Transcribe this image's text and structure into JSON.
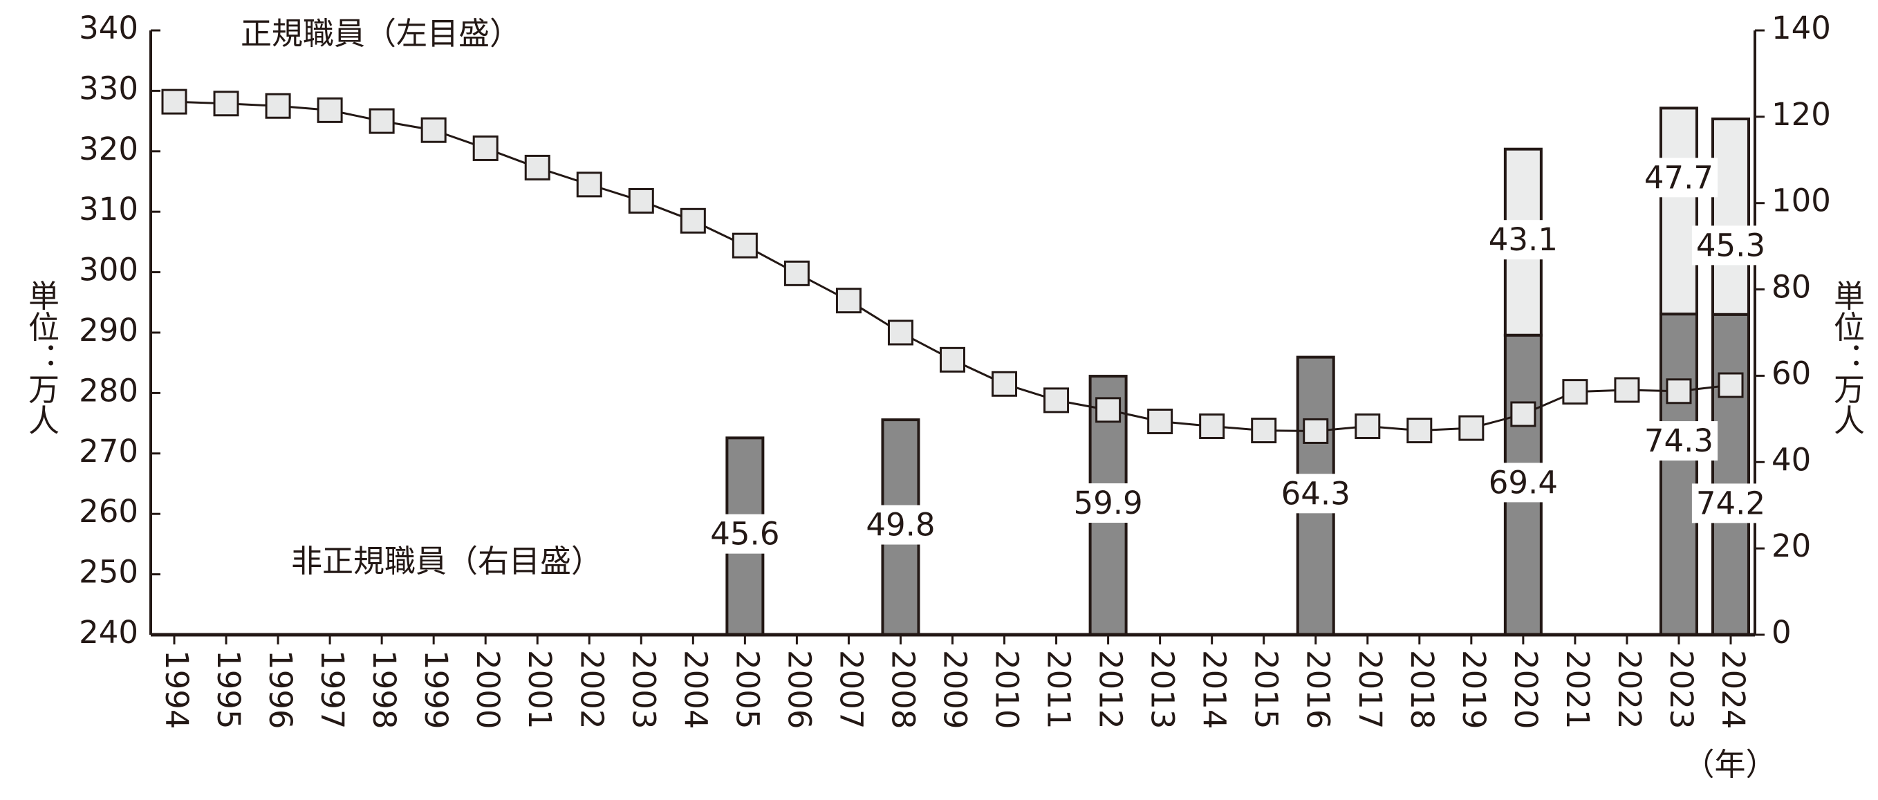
{
  "chart_data": {
    "type": "combo",
    "annotations": [
      "正規職員（左目盛）",
      "非正規職員（右目盛）"
    ],
    "ylabel": "単位：万人",
    "y2label": "単位：万人",
    "xlabel": "（年）",
    "categories": [
      "1994",
      "1995",
      "1996",
      "1997",
      "1998",
      "1999",
      "2000",
      "2001",
      "2002",
      "2003",
      "2004",
      "2005",
      "2006",
      "2007",
      "2008",
      "2009",
      "2010",
      "2011",
      "2012",
      "2013",
      "2014",
      "2015",
      "2016",
      "2017",
      "2018",
      "2019",
      "2020",
      "2021",
      "2022",
      "2023",
      "2024"
    ],
    "series": [
      {
        "type": "line",
        "axis": "y",
        "color": "#e8e9e9",
        "values": [
          328.2,
          327.9,
          327.5,
          326.8,
          325.0,
          323.5,
          320.5,
          317.3,
          314.5,
          311.8,
          308.5,
          304.4,
          299.8,
          295.3,
          290.0,
          285.5,
          281.5,
          278.8,
          277.2,
          275.3,
          274.5,
          273.8,
          273.7,
          274.5,
          273.8,
          274.2,
          276.5,
          280.2,
          280.5,
          280.3,
          281.3
        ]
      },
      {
        "type": "bar",
        "axis": "y2",
        "color": "#898989",
        "values": [
          null,
          null,
          null,
          null,
          null,
          null,
          null,
          null,
          null,
          null,
          null,
          45.6,
          null,
          null,
          49.8,
          null,
          null,
          null,
          59.9,
          null,
          null,
          null,
          64.3,
          null,
          null,
          null,
          69.4,
          null,
          null,
          74.3,
          74.2
        ]
      },
      {
        "type": "bar",
        "axis": "y2",
        "color": "#ebecec",
        "values": [
          null,
          null,
          null,
          null,
          null,
          null,
          null,
          null,
          null,
          null,
          null,
          null,
          null,
          null,
          null,
          null,
          null,
          null,
          null,
          null,
          null,
          null,
          null,
          null,
          null,
          null,
          43.1,
          null,
          null,
          47.7,
          45.3
        ]
      }
    ],
    "ylim": [
      240,
      340
    ],
    "yticks": [
      240,
      250,
      260,
      270,
      280,
      290,
      300,
      310,
      320,
      330,
      340
    ],
    "y2lim": [
      0,
      140
    ],
    "y2ticks": [
      0,
      20,
      40,
      60,
      80,
      100,
      120,
      140
    ]
  }
}
